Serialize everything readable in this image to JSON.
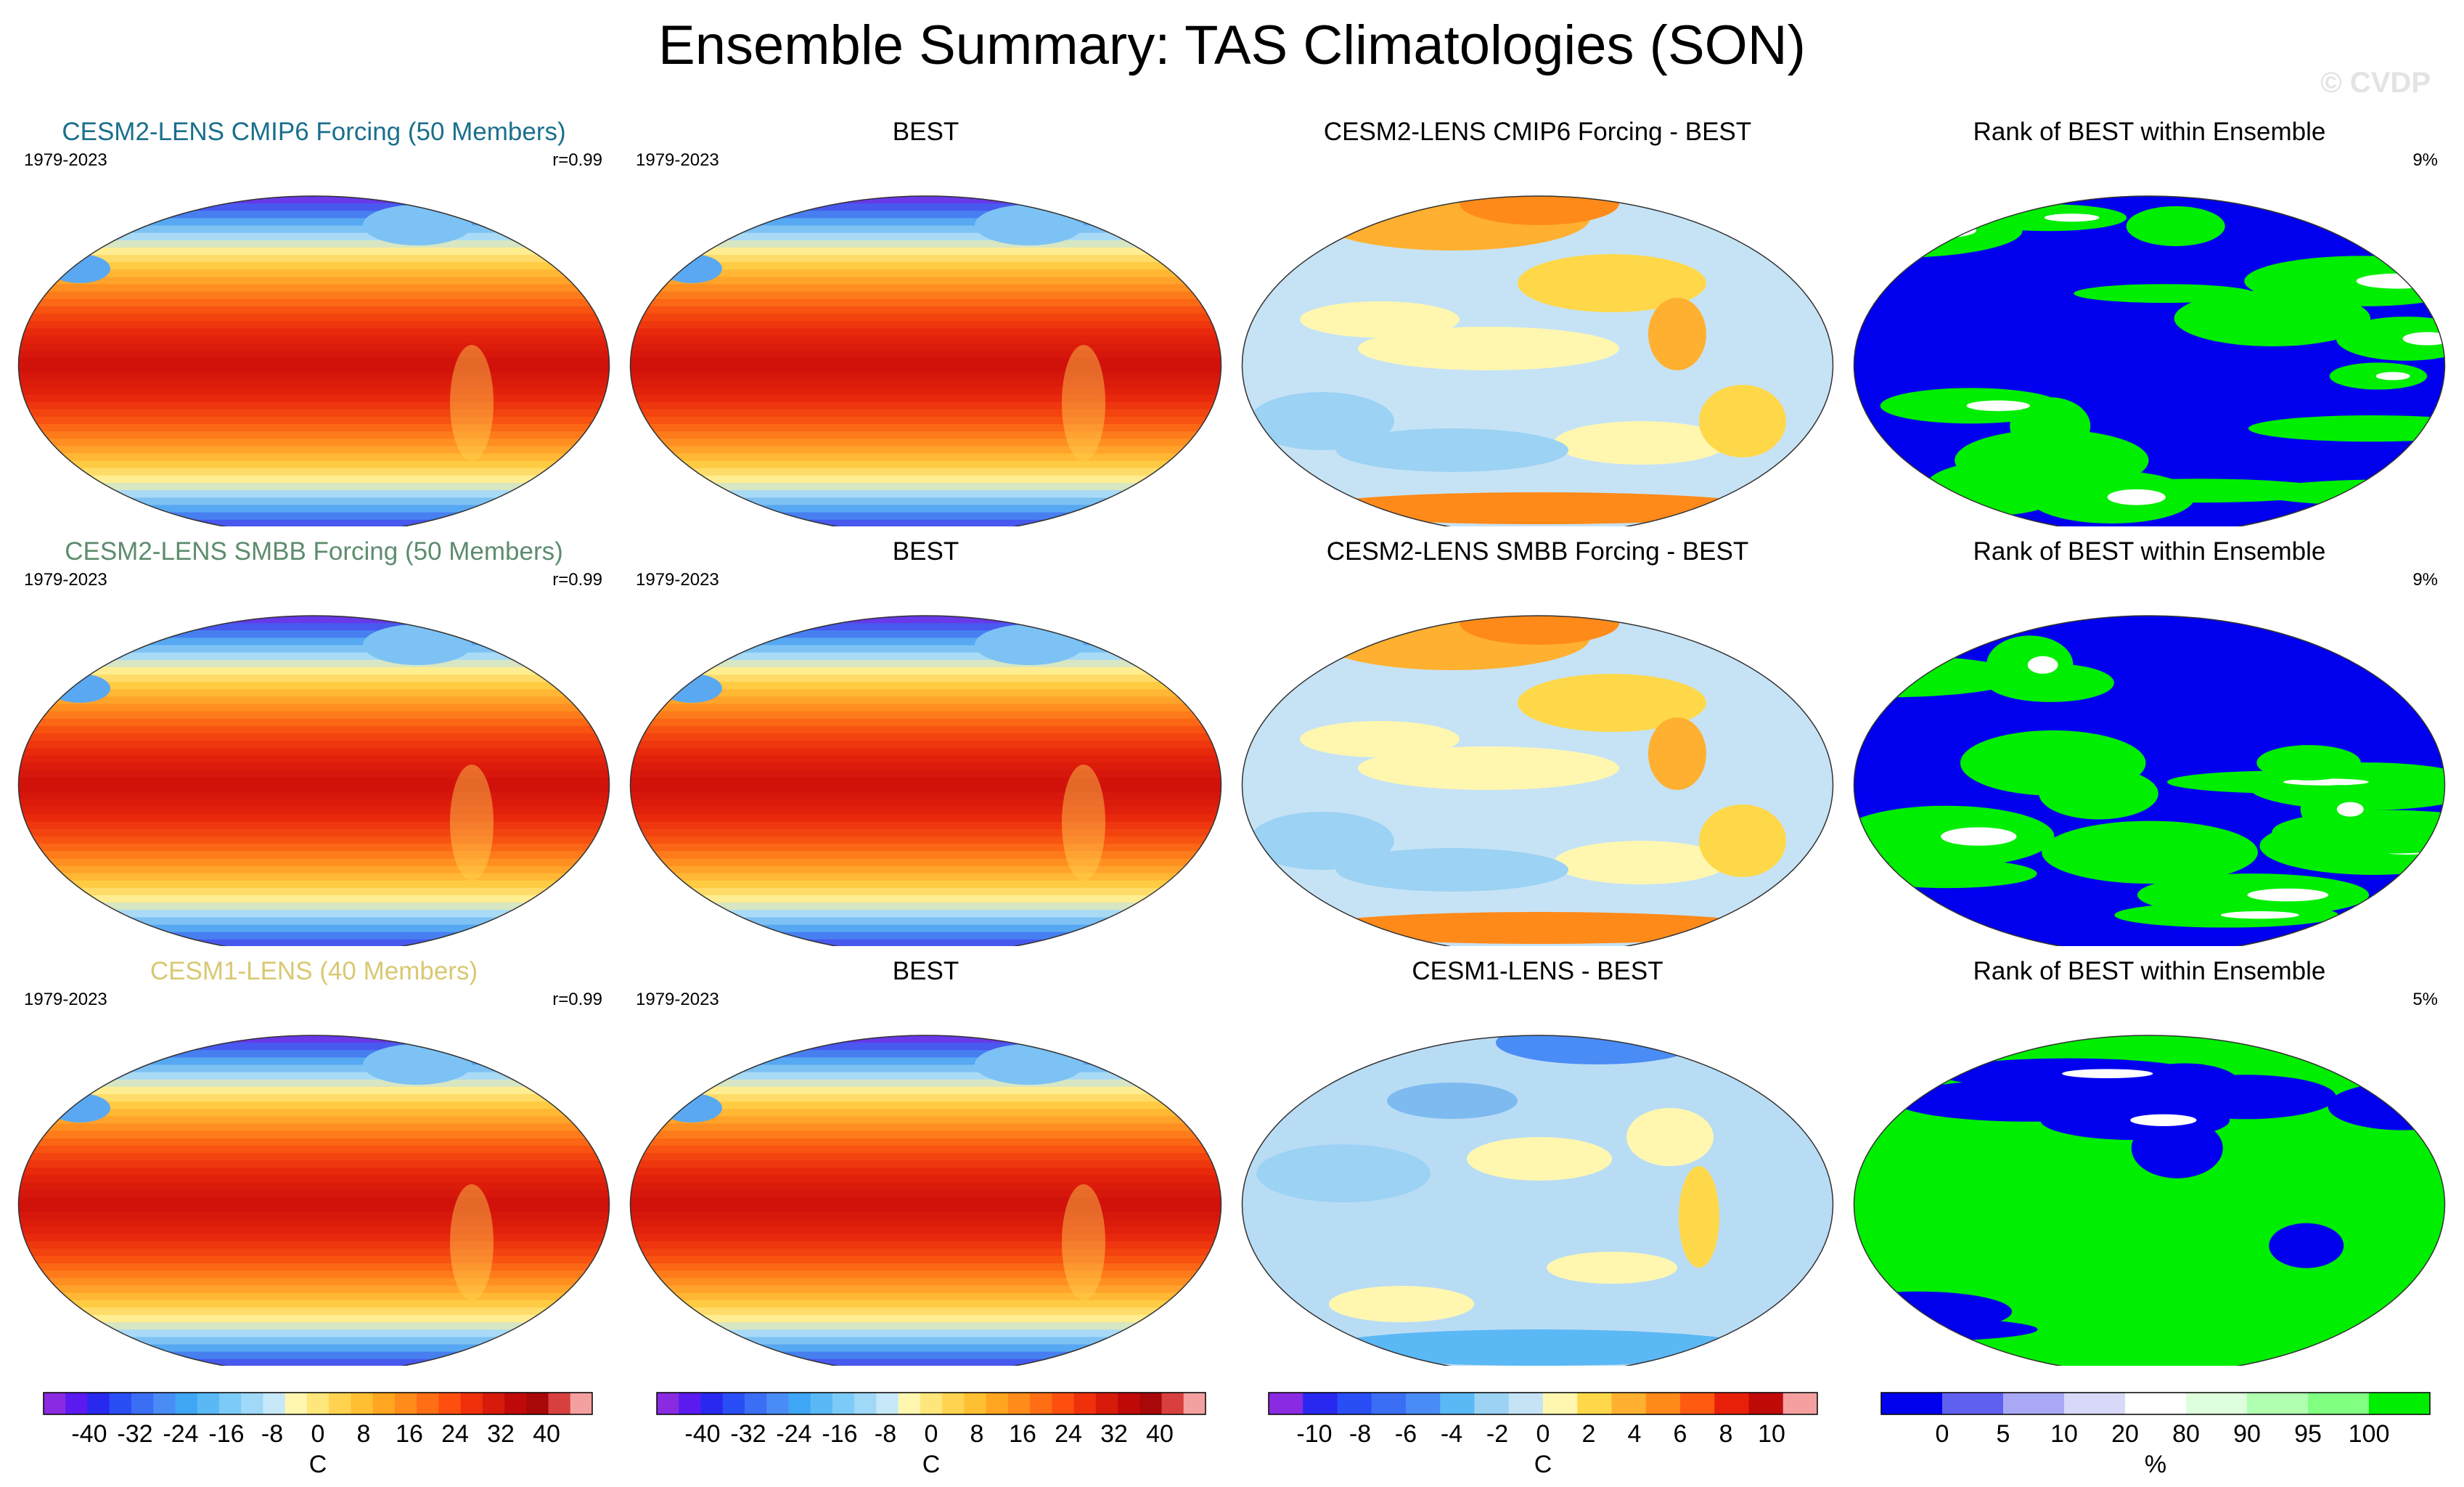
{
  "title": "Ensemble Summary: TAS Climatologies (SON)",
  "watermark": "© CVDP",
  "rows": [
    {
      "model": {
        "title": "CESM2-LENS CMIP6 Forcing (50 Members)",
        "title_color": "#1a6f8c",
        "years": "1979-2023",
        "corr": "r=0.99"
      },
      "obs": {
        "title": "BEST",
        "years": "1979-2023"
      },
      "diff": {
        "title": "CESM2-LENS CMIP6 Forcing - BEST"
      },
      "rank": {
        "title": "Rank of BEST within Ensemble",
        "pct": "9%"
      }
    },
    {
      "model": {
        "title": "CESM2-LENS SMBB Forcing (50 Members)",
        "title_color": "#5d8c6e",
        "years": "1979-2023",
        "corr": "r=0.99"
      },
      "obs": {
        "title": "BEST",
        "years": "1979-2023"
      },
      "diff": {
        "title": "CESM2-LENS SMBB Forcing - BEST"
      },
      "rank": {
        "title": "Rank of BEST within Ensemble",
        "pct": "9%"
      }
    },
    {
      "model": {
        "title": "CESM1-LENS (40 Members)",
        "title_color": "#d9c873",
        "years": "1979-2023",
        "corr": "r=0.99"
      },
      "obs": {
        "title": "BEST",
        "years": "1979-2023"
      },
      "diff": {
        "title": "CESM1-LENS - BEST"
      },
      "rank": {
        "title": "Rank of BEST within Ensemble",
        "pct": "5%"
      }
    }
  ],
  "colorbars": [
    {
      "unit": "C",
      "labels": [
        "-40",
        "-32",
        "-24",
        "-16",
        "-8",
        "0",
        "8",
        "16",
        "24",
        "32",
        "40"
      ],
      "colors": [
        "#8a2be2",
        "#5a1af0",
        "#2828f0",
        "#2a4ef5",
        "#3a6ef5",
        "#4a8cf5",
        "#3ea6f5",
        "#5ab8f5",
        "#7ccaf7",
        "#a0d8f7",
        "#c6e8f9",
        "#fff6b0",
        "#ffe67a",
        "#ffd34f",
        "#ffbf33",
        "#ffa51f",
        "#ff8c1a",
        "#ff6e14",
        "#ff4f0f",
        "#f0300a",
        "#d81a0a",
        "#c00a0a",
        "#a80808",
        "#d84040",
        "#f4a0a0"
      ]
    },
    {
      "unit": "C",
      "labels": [
        "-40",
        "-32",
        "-24",
        "-16",
        "-8",
        "0",
        "8",
        "16",
        "24",
        "32",
        "40"
      ],
      "colors": [
        "#8a2be2",
        "#5a1af0",
        "#2828f0",
        "#2a4ef5",
        "#3a6ef5",
        "#4a8cf5",
        "#3ea6f5",
        "#5ab8f5",
        "#7ccaf7",
        "#a0d8f7",
        "#c6e8f9",
        "#fff6b0",
        "#ffe67a",
        "#ffd34f",
        "#ffbf33",
        "#ffa51f",
        "#ff8c1a",
        "#ff6e14",
        "#ff4f0f",
        "#f0300a",
        "#d81a0a",
        "#c00a0a",
        "#a80808",
        "#d84040",
        "#f4a0a0"
      ]
    },
    {
      "unit": "C",
      "labels": [
        "-10",
        "-8",
        "-6",
        "-4",
        "-2",
        "0",
        "2",
        "4",
        "6",
        "8",
        "10"
      ],
      "colors": [
        "#8a2be2",
        "#2828f0",
        "#2a4ef5",
        "#3a6ef5",
        "#4a8cf5",
        "#5ab8f5",
        "#9cd2f3",
        "#c6e3f5",
        "#fff7b0",
        "#ffd84a",
        "#ffb030",
        "#ff8a1a",
        "#ff5a10",
        "#e8200a",
        "#c00a0a",
        "#f4a0a0"
      ]
    },
    {
      "unit": "%",
      "labels": [
        "0",
        "5",
        "10",
        "20",
        "80",
        "90",
        "95",
        "100"
      ],
      "colors": [
        "#0000ee",
        "#6060f0",
        "#a8a8f4",
        "#d8d8f8",
        "#ffffff",
        "#ddffdd",
        "#b0ffb0",
        "#80ff80",
        "#00ee00"
      ]
    }
  ],
  "chart_data": [
    {
      "type": "heatmap",
      "title": "CESM2-LENS CMIP6 Forcing (50 Members)",
      "period": "1979-2023",
      "pattern_correlation": 0.99,
      "variable": "TAS SON climatology",
      "units": "C",
      "range": [
        -40,
        40
      ]
    },
    {
      "type": "heatmap",
      "title": "BEST",
      "period": "1979-2023",
      "variable": "TAS SON climatology",
      "units": "C",
      "range": [
        -40,
        40
      ]
    },
    {
      "type": "heatmap",
      "title": "CESM2-LENS CMIP6 Forcing - BEST",
      "variable": "difference",
      "units": "C",
      "range": [
        -10,
        10
      ]
    },
    {
      "type": "heatmap",
      "title": "Rank of BEST within Ensemble",
      "variable": "rank",
      "units": "%",
      "percent_shown": 9
    },
    {
      "type": "heatmap",
      "title": "CESM2-LENS SMBB Forcing (50 Members)",
      "period": "1979-2023",
      "pattern_correlation": 0.99,
      "variable": "TAS SON climatology",
      "units": "C",
      "range": [
        -40,
        40
      ]
    },
    {
      "type": "heatmap",
      "title": "BEST",
      "period": "1979-2023",
      "variable": "TAS SON climatology",
      "units": "C",
      "range": [
        -40,
        40
      ]
    },
    {
      "type": "heatmap",
      "title": "CESM2-LENS SMBB Forcing - BEST",
      "variable": "difference",
      "units": "C",
      "range": [
        -10,
        10
      ]
    },
    {
      "type": "heatmap",
      "title": "Rank of BEST within Ensemble",
      "variable": "rank",
      "units": "%",
      "percent_shown": 9
    },
    {
      "type": "heatmap",
      "title": "CESM1-LENS (40 Members)",
      "period": "1979-2023",
      "pattern_correlation": 0.99,
      "variable": "TAS SON climatology",
      "units": "C",
      "range": [
        -40,
        40
      ]
    },
    {
      "type": "heatmap",
      "title": "BEST",
      "period": "1979-2023",
      "variable": "TAS SON climatology",
      "units": "C",
      "range": [
        -40,
        40
      ]
    },
    {
      "type": "heatmap",
      "title": "CESM1-LENS - BEST",
      "variable": "difference",
      "units": "C",
      "range": [
        -10,
        10
      ]
    },
    {
      "type": "heatmap",
      "title": "Rank of BEST within Ensemble",
      "variable": "rank",
      "units": "%",
      "percent_shown": 5
    }
  ]
}
